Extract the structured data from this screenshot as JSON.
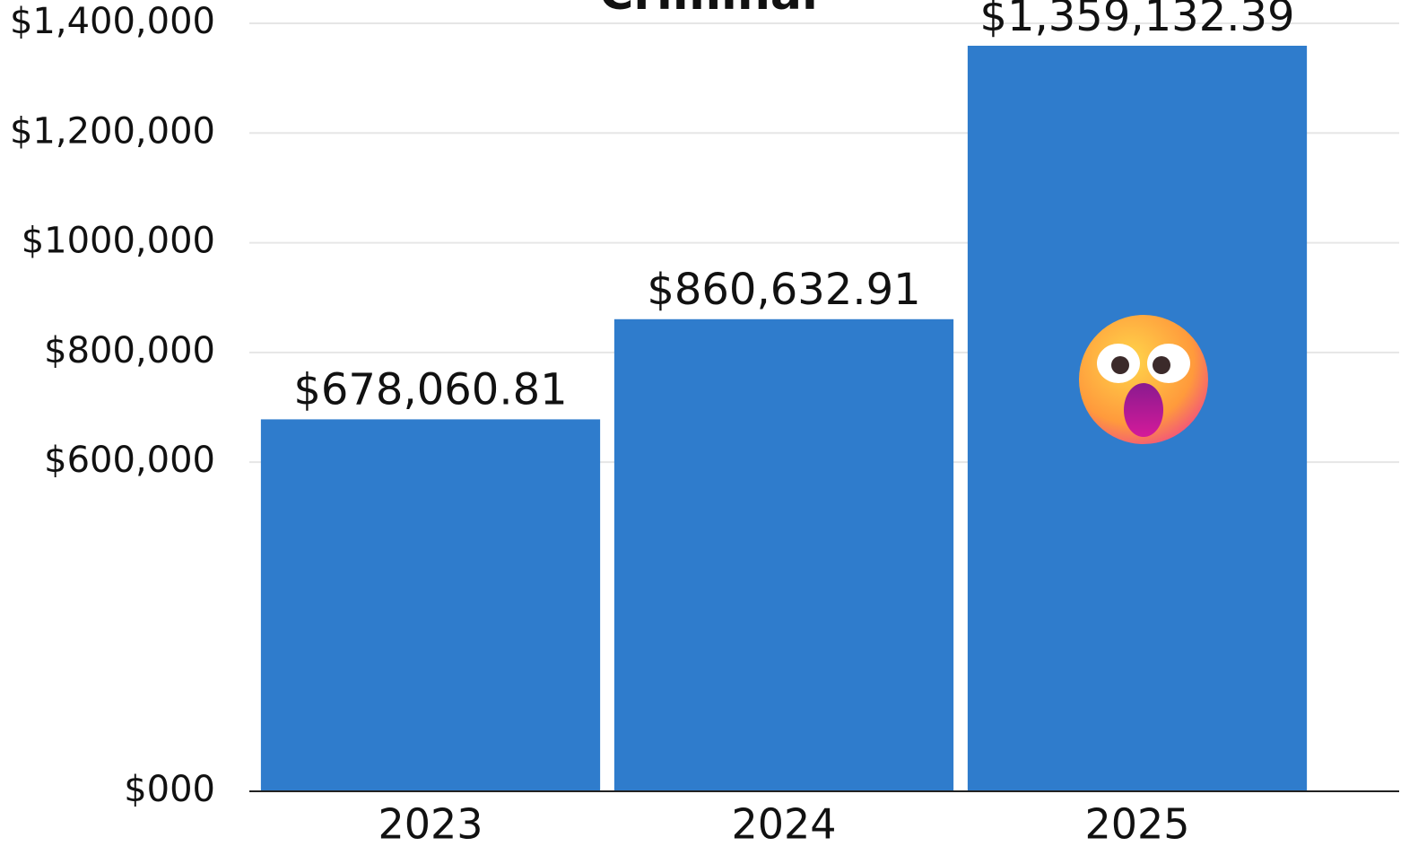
{
  "chart_data": {
    "type": "bar",
    "title": "Criminal",
    "categories": [
      "2023",
      "2024",
      "2025"
    ],
    "values": [
      678060.81,
      860632.91,
      1359132.39
    ],
    "value_labels": [
      "$678,060.81",
      "$860,632.91",
      "$1,359,132.39"
    ],
    "color": "#2f7ccc",
    "ylim": [
      0,
      1400000
    ],
    "yticks": [
      {
        "value": 0,
        "label": "$000"
      },
      {
        "value": 600000,
        "label": "$600,000"
      },
      {
        "value": 800000,
        "label": "$800,000"
      },
      {
        "value": 1000000,
        "label": "$1000,000"
      },
      {
        "value": 1200000,
        "label": "$1,200,000"
      },
      {
        "value": 1400000,
        "label": "$1,400,000"
      }
    ],
    "grid": true
  }
}
